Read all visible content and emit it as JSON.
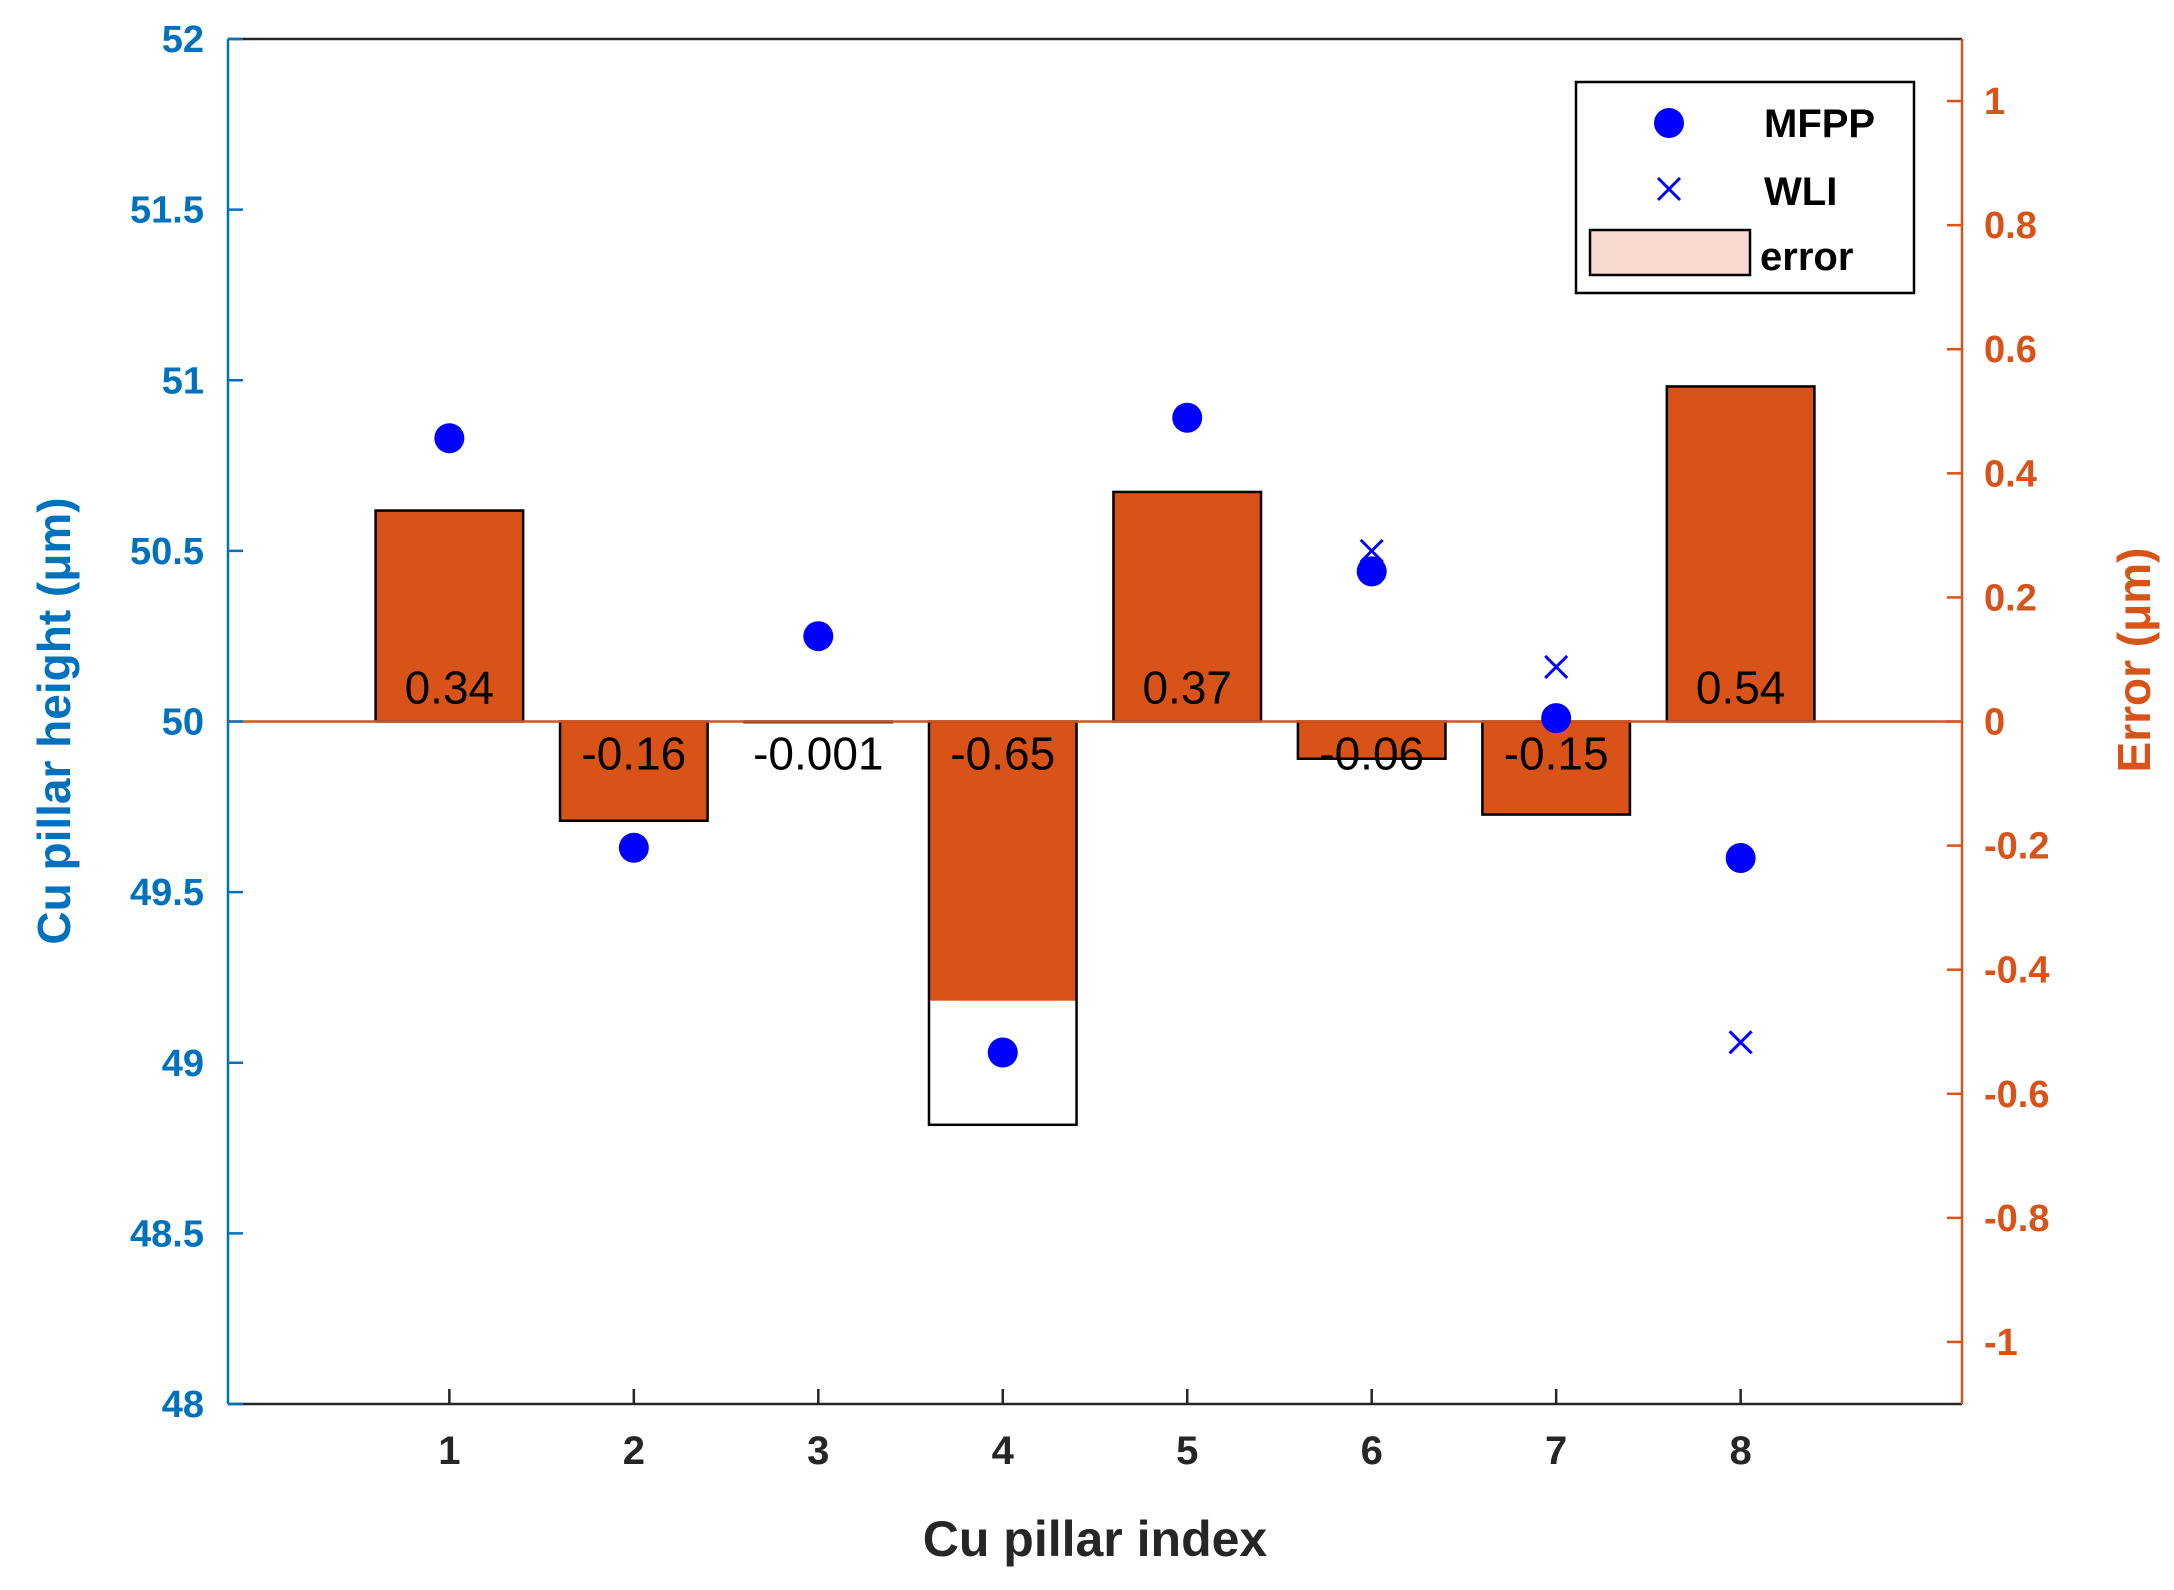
{
  "chart_data": {
    "type": "bar",
    "title": "",
    "xlabel": "Cu pillar index",
    "ylabel_left": "Cu pillar height  (μm)",
    "ylabel_right": "Error (μm)",
    "categories": [
      "1",
      "2",
      "3",
      "4",
      "5",
      "6",
      "7",
      "8"
    ],
    "x": [
      1,
      2,
      3,
      4,
      5,
      6,
      7,
      8
    ],
    "xlim": [
      -0.2,
      9.2
    ],
    "ylim_left": [
      48,
      52
    ],
    "ylim_right": [
      -1.1,
      1.1
    ],
    "yticks_left": [
      "48",
      "48.5",
      "49",
      "49.5",
      "50",
      "50.5",
      "51",
      "51.5",
      "52"
    ],
    "yticks_right": [
      "-1",
      "-0.8",
      "-0.6",
      "-0.4",
      "-0.2",
      "0",
      "0.2",
      "0.4",
      "0.6",
      "0.8",
      "1"
    ],
    "series": [
      {
        "name": "MFPP",
        "axis": "left",
        "marker": "filled-circle",
        "values": [
          50.83,
          49.63,
          50.25,
          49.03,
          50.89,
          50.44,
          50.01,
          49.6
        ]
      },
      {
        "name": "WLI",
        "axis": "left",
        "marker": "x",
        "values": [
          null,
          null,
          null,
          null,
          null,
          50.5,
          50.16,
          49.06
        ]
      },
      {
        "name": "error",
        "axis": "right",
        "type": "bar",
        "values": [
          0.34,
          -0.16,
          -0.001,
          -0.65,
          0.37,
          -0.06,
          -0.15,
          0.54
        ],
        "labels": [
          "0.34",
          "-0.16",
          "-0.001",
          "-0.65",
          "0.37",
          "-0.06",
          "-0.15",
          "0.54"
        ]
      }
    ],
    "bar4_filled_to": -0.45,
    "legend": {
      "position": "top-right",
      "entries": [
        "MFPP",
        "WLI",
        "error"
      ]
    },
    "colors": {
      "left_axis": "#0072BD",
      "right_axis": "#D95319",
      "bar_fill": "#D95319",
      "markers": "#0000FF",
      "legend_bar_fill": "#F7D9CF"
    }
  }
}
